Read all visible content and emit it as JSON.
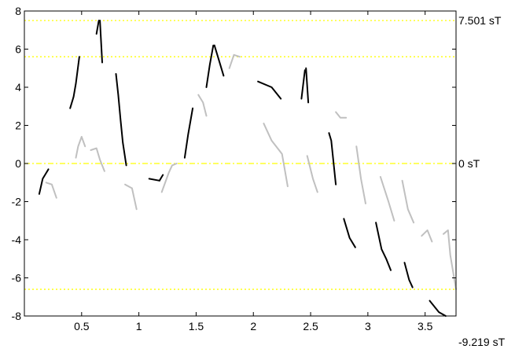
{
  "chart_data": {
    "type": "line",
    "title": "",
    "xlabel": "",
    "ylabel": "",
    "xlim": [
      0,
      3.77
    ],
    "ylim": [
      -8,
      8
    ],
    "x_ticks": [
      0.5,
      1,
      1.5,
      2,
      2.5,
      3,
      3.5
    ],
    "x_tick_labels": [
      "0.5",
      "1",
      "1.5",
      "2",
      "2.5",
      "3",
      "3.5"
    ],
    "y_ticks": [
      -8,
      -6,
      -4,
      -2,
      0,
      2,
      4,
      6,
      8
    ],
    "y_tick_labels": [
      "-8",
      "-6",
      "-4",
      "-2",
      "0",
      "2",
      "4",
      "6",
      "8"
    ],
    "grid": false,
    "reference_lines": [
      {
        "y": 7.501,
        "style": "dotted",
        "color": "#ffff00",
        "label": "7.501 sT"
      },
      {
        "y": 5.6,
        "style": "dotted",
        "color": "#ffff00",
        "label": ""
      },
      {
        "y": 0,
        "style": "dash-dot",
        "color": "#ffff00",
        "label": "0 sT"
      },
      {
        "y": -6.6,
        "style": "dotted",
        "color": "#ffff00",
        "label": ""
      }
    ],
    "bottom_right_label": "-9.219 sT",
    "series": [
      {
        "color": "#000000",
        "segments": [
          [
            [
              0.13,
              -1.6
            ],
            [
              0.16,
              -0.8
            ],
            [
              0.19,
              -0.5
            ],
            [
              0.21,
              -0.3
            ]
          ],
          [
            [
              0.4,
              2.9
            ],
            [
              0.43,
              3.5
            ],
            [
              0.45,
              4.2
            ],
            [
              0.48,
              5.6
            ]
          ],
          [
            [
              0.63,
              6.8
            ],
            [
              0.65,
              7.5
            ]
          ],
          [
            [
              0.66,
              7.5
            ],
            [
              0.68,
              5.3
            ]
          ],
          [
            [
              0.8,
              4.7
            ],
            [
              0.82,
              3.6
            ],
            [
              0.84,
              2.3
            ],
            [
              0.86,
              1.1
            ],
            [
              0.89,
              -0.1
            ]
          ],
          [
            [
              1.09,
              -0.8
            ],
            [
              1.18,
              -0.9
            ]
          ],
          [
            [
              1.18,
              -0.9
            ],
            [
              1.21,
              -0.6
            ]
          ],
          [
            [
              1.4,
              0.3
            ],
            [
              1.43,
              1.5
            ],
            [
              1.47,
              2.9
            ]
          ],
          [
            [
              1.59,
              4.0
            ],
            [
              1.62,
              5.2
            ],
            [
              1.65,
              6.2
            ]
          ],
          [
            [
              1.66,
              6.2
            ],
            [
              1.7,
              5.4
            ],
            [
              1.74,
              4.6
            ]
          ],
          [
            [
              2.04,
              4.3
            ],
            [
              2.16,
              4.0
            ],
            [
              2.24,
              3.4
            ]
          ],
          [
            [
              2.42,
              3.4
            ],
            [
              2.45,
              4.9
            ]
          ],
          [
            [
              2.46,
              5.0
            ],
            [
              2.48,
              3.2
            ]
          ],
          [
            [
              2.66,
              1.6
            ],
            [
              2.68,
              1.2
            ],
            [
              2.72,
              -1.1
            ]
          ],
          [
            [
              2.79,
              -2.9
            ],
            [
              2.84,
              -3.9
            ],
            [
              2.89,
              -4.4
            ]
          ],
          [
            [
              3.07,
              -3.1
            ],
            [
              3.12,
              -4.5
            ],
            [
              3.16,
              -5.0
            ],
            [
              3.2,
              -5.6
            ]
          ],
          [
            [
              3.32,
              -5.2
            ],
            [
              3.36,
              -6.1
            ],
            [
              3.39,
              -6.5
            ]
          ],
          [
            [
              3.54,
              -7.2
            ],
            [
              3.62,
              -7.8
            ],
            [
              3.68,
              -8.0
            ]
          ]
        ]
      },
      {
        "color": "#c0c0c0",
        "segments": [
          [
            [
              0.19,
              -1.0
            ],
            [
              0.24,
              -1.1
            ],
            [
              0.28,
              -1.8
            ]
          ],
          [
            [
              0.45,
              0.3
            ],
            [
              0.47,
              0.9
            ],
            [
              0.5,
              1.4
            ],
            [
              0.53,
              0.9
            ]
          ],
          [
            [
              0.58,
              0.7
            ],
            [
              0.63,
              0.8
            ],
            [
              0.66,
              0.2
            ],
            [
              0.7,
              -0.4
            ]
          ],
          [
            [
              0.88,
              -1.1
            ],
            [
              0.94,
              -1.3
            ],
            [
              0.98,
              -2.4
            ]
          ],
          [
            [
              1.2,
              -1.5
            ],
            [
              1.26,
              -0.5
            ],
            [
              1.29,
              -0.1
            ],
            [
              1.33,
              0.0
            ]
          ],
          [
            [
              1.52,
              3.6
            ],
            [
              1.56,
              3.2
            ],
            [
              1.59,
              2.5
            ]
          ],
          [
            [
              1.79,
              5.0
            ],
            [
              1.83,
              5.7
            ],
            [
              1.88,
              5.6
            ]
          ],
          [
            [
              2.09,
              2.1
            ],
            [
              2.16,
              1.2
            ],
            [
              2.25,
              0.5
            ],
            [
              2.3,
              -1.2
            ]
          ],
          [
            [
              2.47,
              0.4
            ],
            [
              2.52,
              -0.8
            ],
            [
              2.56,
              -1.5
            ]
          ],
          [
            [
              2.72,
              2.7
            ],
            [
              2.76,
              2.4
            ],
            [
              2.81,
              2.4
            ]
          ],
          [
            [
              2.9,
              0.9
            ],
            [
              2.94,
              -0.8
            ],
            [
              2.98,
              -2.1
            ]
          ],
          [
            [
              3.11,
              -0.7
            ],
            [
              3.18,
              -2.0
            ],
            [
              3.23,
              -3.0
            ]
          ],
          [
            [
              3.3,
              -0.9
            ],
            [
              3.35,
              -2.4
            ],
            [
              3.4,
              -3.1
            ]
          ],
          [
            [
              3.47,
              -3.8
            ],
            [
              3.52,
              -3.5
            ],
            [
              3.56,
              -4.1
            ]
          ],
          [
            [
              3.66,
              -3.7
            ],
            [
              3.7,
              -3.5
            ],
            [
              3.72,
              -4.8
            ],
            [
              3.77,
              -6.6
            ]
          ]
        ]
      }
    ]
  }
}
